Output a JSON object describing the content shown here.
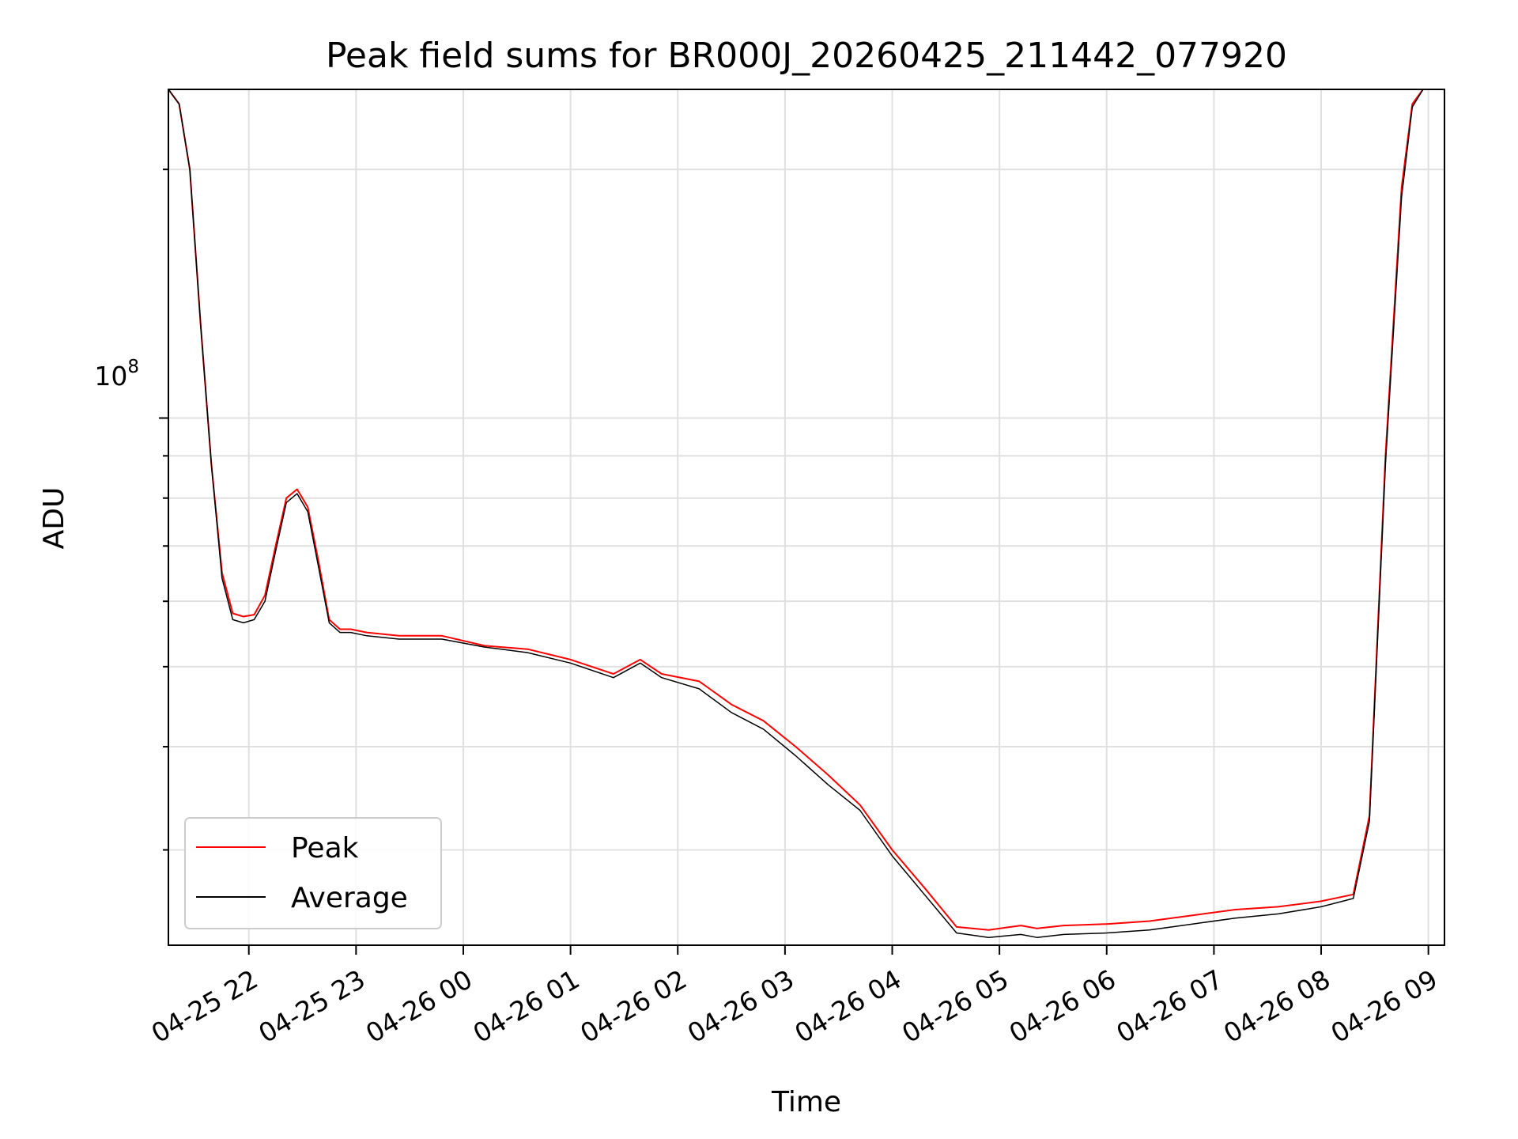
{
  "chart_data": {
    "type": "line",
    "title": "Peak field sums for BR000J_20260425_211442_077920",
    "xlabel": "Time",
    "ylabel": "ADU",
    "yscale": "log",
    "y_tick_label": {
      "base": "10",
      "exp": "8"
    },
    "xlim_hours": [
      21.25,
      9.15
    ],
    "ylim": [
      23000000,
      250000000
    ],
    "x_tick_labels": [
      "04-25 22",
      "04-25 23",
      "04-26 00",
      "04-26 01",
      "04-26 02",
      "04-26 03",
      "04-26 04",
      "04-26 05",
      "04-26 06",
      "04-26 07",
      "04-26 08",
      "04-26 09"
    ],
    "grid": true,
    "legend_position": "lower-left",
    "series": [
      {
        "name": "Peak",
        "color": "#ff0000",
        "x_hours": [
          21.25,
          21.35,
          21.45,
          21.55,
          21.65,
          21.75,
          21.85,
          21.95,
          22.05,
          22.15,
          22.25,
          22.35,
          22.45,
          22.55,
          22.65,
          22.75,
          22.85,
          22.95,
          23.1,
          23.4,
          23.8,
          24.2,
          24.6,
          25.0,
          25.4,
          25.65,
          25.85,
          26.2,
          26.5,
          26.8,
          27.1,
          27.4,
          27.7,
          28.0,
          28.3,
          28.6,
          28.9,
          29.2,
          29.35,
          29.6,
          30.0,
          30.4,
          30.8,
          31.2,
          31.6,
          32.0,
          32.3,
          32.45,
          32.6,
          32.75,
          32.85,
          32.95
        ],
        "y": [
          250000000,
          240000000,
          200000000,
          130000000,
          88000000,
          65000000,
          58000000,
          57500000,
          57800000,
          61000000,
          70000000,
          80000000,
          82000000,
          78000000,
          67000000,
          57000000,
          55500000,
          55500000,
          55000000,
          54500000,
          54500000,
          53000000,
          52500000,
          51000000,
          49000000,
          51000000,
          49000000,
          48000000,
          45000000,
          43000000,
          40000000,
          37000000,
          34000000,
          30000000,
          27000000,
          24200000,
          24000000,
          24300000,
          24100000,
          24300000,
          24400000,
          24600000,
          25000000,
          25400000,
          25600000,
          26000000,
          26500000,
          33000000,
          90000000,
          190000000,
          240000000,
          250000000
        ]
      },
      {
        "name": "Average",
        "color": "#000000",
        "x_hours": [
          21.25,
          21.35,
          21.45,
          21.55,
          21.65,
          21.75,
          21.85,
          21.95,
          22.05,
          22.15,
          22.25,
          22.35,
          22.45,
          22.55,
          22.65,
          22.75,
          22.85,
          22.95,
          23.1,
          23.4,
          23.8,
          24.2,
          24.6,
          25.0,
          25.4,
          25.65,
          25.85,
          26.2,
          26.5,
          26.8,
          27.1,
          27.4,
          27.7,
          28.0,
          28.3,
          28.6,
          28.9,
          29.2,
          29.35,
          29.6,
          30.0,
          30.4,
          30.8,
          31.2,
          31.6,
          32.0,
          32.3,
          32.45,
          32.6,
          32.75,
          32.85,
          32.95
        ],
        "y": [
          250000000,
          240000000,
          200000000,
          130000000,
          88000000,
          64000000,
          57000000,
          56500000,
          57000000,
          60000000,
          69000000,
          79000000,
          81000000,
          77000000,
          66000000,
          56500000,
          55000000,
          55000000,
          54500000,
          54000000,
          54000000,
          52800000,
          52000000,
          50500000,
          48500000,
          50500000,
          48500000,
          47000000,
          44000000,
          42000000,
          39000000,
          36000000,
          33500000,
          29500000,
          26500000,
          23800000,
          23500000,
          23700000,
          23500000,
          23700000,
          23800000,
          24000000,
          24400000,
          24800000,
          25100000,
          25600000,
          26200000,
          32500000,
          88000000,
          185000000,
          238000000,
          250000000
        ]
      }
    ]
  }
}
